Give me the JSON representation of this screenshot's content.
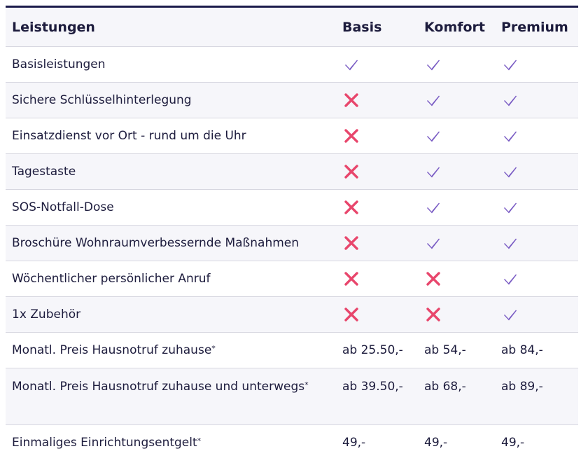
{
  "header": {
    "col1": "Leistungen",
    "col2": "Basis",
    "col3": "Komfort",
    "col4": "Premium"
  },
  "features": [
    {
      "label": "Basisleistungen",
      "basis": true,
      "komfort": true,
      "premium": true
    },
    {
      "label": "Sichere Schlüsselhinterlegung",
      "basis": false,
      "komfort": true,
      "premium": true
    },
    {
      "label": "Einsatzdienst vor Ort - rund um die Uhr",
      "basis": false,
      "komfort": true,
      "premium": true
    },
    {
      "label": "Tagestaste",
      "basis": false,
      "komfort": true,
      "premium": true
    },
    {
      "label": "SOS-Notfall-Dose",
      "basis": false,
      "komfort": true,
      "premium": true
    },
    {
      "label": "Broschüre Wohnraumverbessernde Maßnahmen",
      "basis": false,
      "komfort": true,
      "premium": true
    },
    {
      "label": "Wöchentlicher persönlicher Anruf",
      "basis": false,
      "komfort": false,
      "premium": true
    },
    {
      "label": "1x Zubehör",
      "basis": false,
      "komfort": false,
      "premium": true
    }
  ],
  "prices": [
    {
      "label": "Monatl. Preis Hausnotruf zuhause",
      "mark": "*",
      "basis": "ab 25.50,-",
      "komfort": "ab 54,-",
      "premium": "ab 84,-"
    },
    {
      "label": "Monatl. Preis Hausnotruf zuhause und unterwegs",
      "mark": "*",
      "basis": "ab 39.50,-",
      "komfort": "ab 68,-",
      "premium": "ab 89,-"
    },
    {
      "label": "Einmaliges Einrichtungsentgelt",
      "mark": "*",
      "basis": "49,-",
      "komfort": "49,-",
      "premium": "49,-"
    }
  ],
  "icons": {
    "included": "check-icon",
    "excluded": "cross-icon"
  },
  "colors": {
    "check": "#7a5cc4",
    "cross": "#e8466c",
    "header_border": "#1a1a4a",
    "text": "#1d1c3d",
    "row_alt": "#f6f6fa",
    "divider": "#d7d7e0"
  }
}
